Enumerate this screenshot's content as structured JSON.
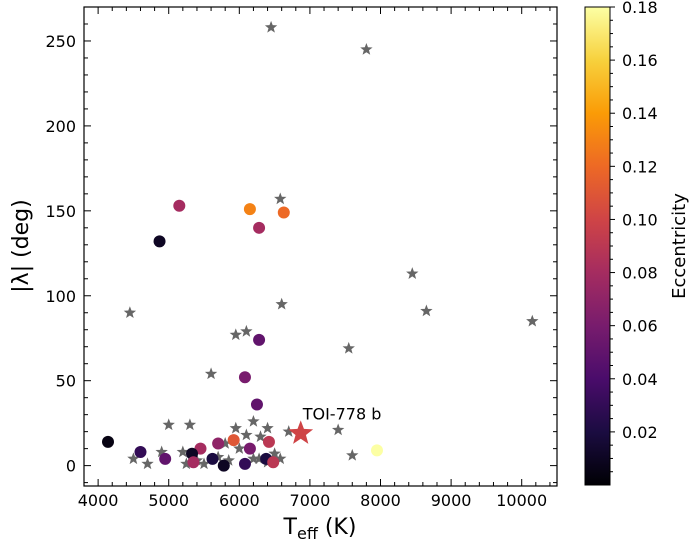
{
  "chart_data": {
    "type": "scatter",
    "title": "",
    "xlabel": "T",
    "xlabel_sub": "eff",
    "xlabel_unit": " (K)",
    "ylabel": "|λ| (deg)",
    "xlim": [
      3800,
      10500
    ],
    "ylim": [
      -12,
      270
    ],
    "x_ticks": [
      4000,
      5000,
      6000,
      7000,
      8000,
      9000,
      10000
    ],
    "y_ticks": [
      0,
      50,
      100,
      150,
      200,
      250
    ],
    "colorbar": {
      "label": "Eccentricity",
      "range": [
        0.0,
        0.18
      ],
      "ticks": [
        "0.02",
        "0.04",
        "0.06",
        "0.08",
        "0.10",
        "0.12",
        "0.14",
        "0.16",
        "0.18"
      ],
      "colors": [
        "#000004",
        "#1b0c41",
        "#4a0c6b",
        "#781c6d",
        "#a52c60",
        "#cf4446",
        "#ed6925",
        "#fb9b06",
        "#f7d13d",
        "#fcffa4"
      ]
    },
    "series": [
      {
        "marker": "star",
        "color": "#666666",
        "points": [
          [
            6450,
            258
          ],
          [
            7800,
            245
          ],
          [
            6580,
            157
          ],
          [
            8450,
            113
          ],
          [
            8650,
            91
          ],
          [
            10150,
            85
          ],
          [
            4450,
            90
          ],
          [
            6600,
            95
          ],
          [
            5950,
            77
          ],
          [
            6100,
            79
          ],
          [
            7550,
            69
          ],
          [
            5600,
            54
          ],
          [
            5000,
            24
          ],
          [
            5300,
            24
          ],
          [
            5950,
            22
          ],
          [
            6200,
            26
          ],
          [
            6400,
            22
          ],
          [
            6100,
            18
          ],
          [
            6300,
            17
          ],
          [
            6700,
            20
          ],
          [
            7400,
            21
          ],
          [
            4900,
            8
          ],
          [
            5200,
            8
          ],
          [
            5800,
            13
          ],
          [
            6000,
            10
          ],
          [
            6500,
            7
          ],
          [
            4500,
            4
          ],
          [
            4700,
            1
          ],
          [
            5250,
            1
          ],
          [
            5400,
            3
          ],
          [
            5500,
            1
          ],
          [
            5700,
            5
          ],
          [
            5850,
            3
          ],
          [
            6200,
            4
          ],
          [
            6400,
            2
          ],
          [
            6580,
            4
          ],
          [
            7600,
            6
          ],
          [
            6280,
            4
          ]
        ]
      },
      {
        "marker": "circle",
        "points": [
          {
            "x": 5150,
            "y": 153,
            "e": 0.08
          },
          {
            "x": 4870,
            "y": 132,
            "e": 0.01
          },
          {
            "x": 6150,
            "y": 151,
            "e": 0.13
          },
          {
            "x": 6630,
            "y": 149,
            "e": 0.12
          },
          {
            "x": 6280,
            "y": 140,
            "e": 0.08
          },
          {
            "x": 6280,
            "y": 74,
            "e": 0.05
          },
          {
            "x": 6080,
            "y": 52,
            "e": 0.06
          },
          {
            "x": 6250,
            "y": 36,
            "e": 0.05
          },
          {
            "x": 4140,
            "y": 14,
            "e": 0.005
          },
          {
            "x": 5920,
            "y": 15,
            "e": 0.11
          },
          {
            "x": 6420,
            "y": 14,
            "e": 0.09
          },
          {
            "x": 5700,
            "y": 13,
            "e": 0.07
          },
          {
            "x": 5450,
            "y": 10,
            "e": 0.08
          },
          {
            "x": 6150,
            "y": 10,
            "e": 0.06
          },
          {
            "x": 4600,
            "y": 8,
            "e": 0.03
          },
          {
            "x": 5330,
            "y": 7,
            "e": 0.01
          },
          {
            "x": 4950,
            "y": 4,
            "e": 0.05
          },
          {
            "x": 5620,
            "y": 4,
            "e": 0.02
          },
          {
            "x": 6380,
            "y": 4,
            "e": 0.02
          },
          {
            "x": 5350,
            "y": 2,
            "e": 0.08
          },
          {
            "x": 6480,
            "y": 2,
            "e": 0.09
          },
          {
            "x": 6080,
            "y": 1,
            "e": 0.03
          },
          {
            "x": 5780,
            "y": 0,
            "e": 0.01
          },
          {
            "x": 7950,
            "y": 9,
            "e": 0.18
          }
        ]
      }
    ],
    "highlight": {
      "label": "TOI-778 b",
      "x": 6870,
      "y": 19,
      "e": 0.1,
      "marker": "star"
    }
  }
}
